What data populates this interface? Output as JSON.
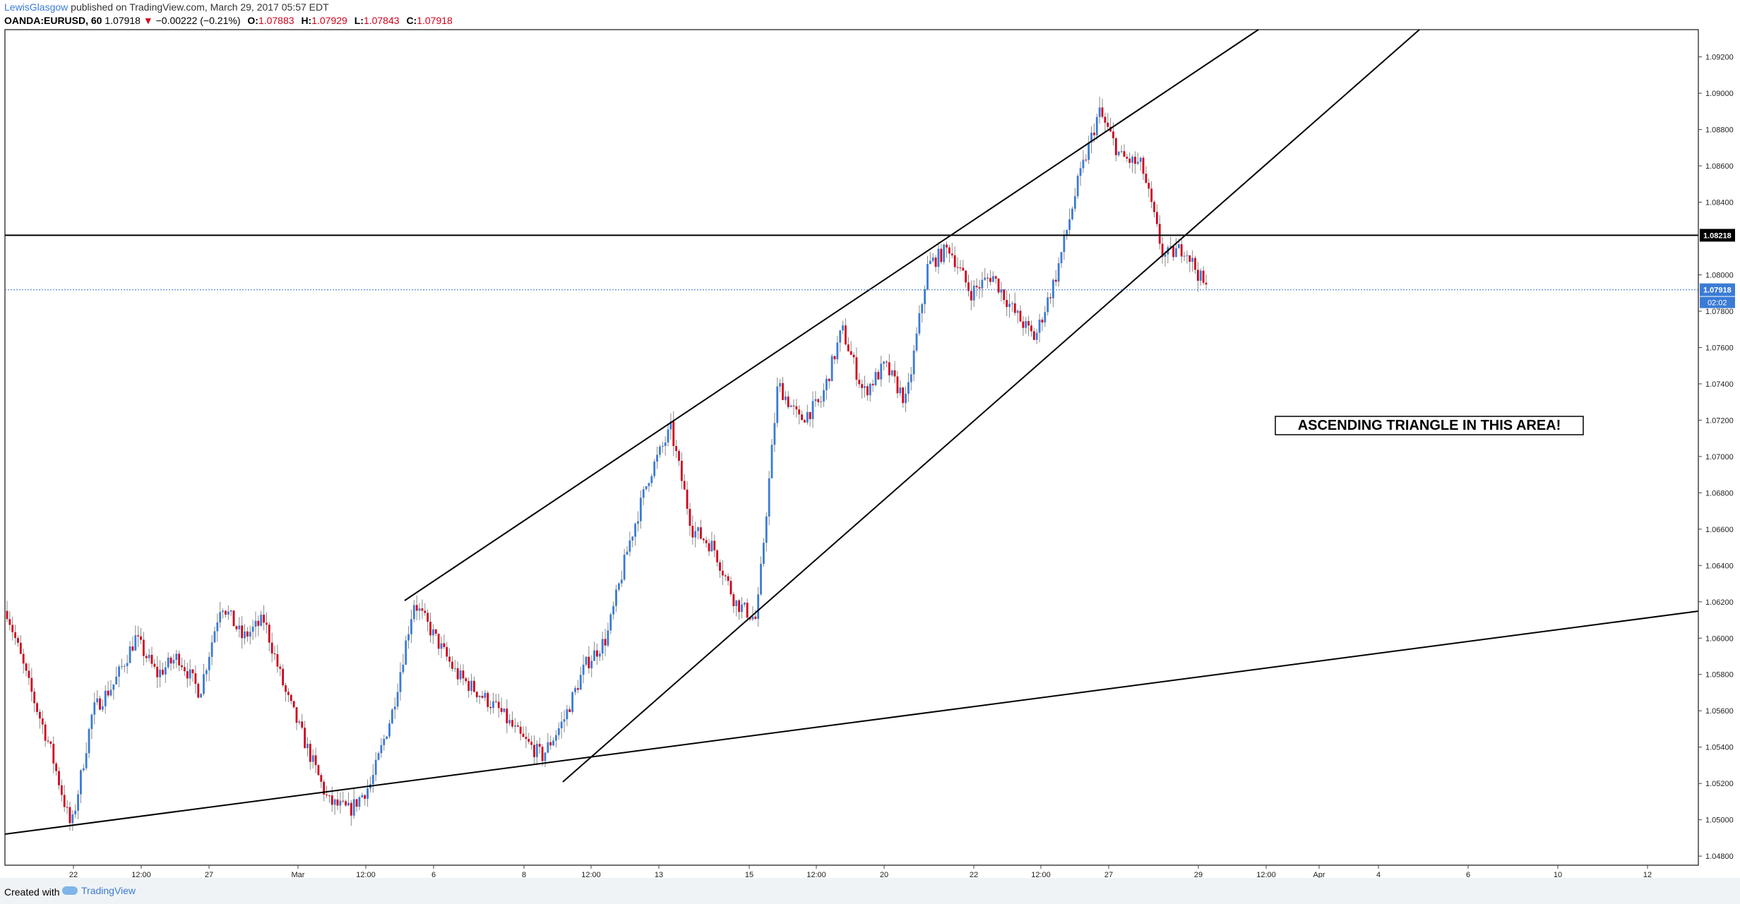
{
  "header": {
    "author": "LewisGlasgow",
    "published_text": " published on TradingView.com, March 29, 2017 05:57 EDT",
    "symbol": "OANDA:EURUSD, 60",
    "last": "1.07918",
    "change_arrow": "▼",
    "change": "−0.00222 (−0.21%)",
    "o_label": "O:",
    "o": "1.07883",
    "h_label": "H:",
    "h": "1.07929",
    "l_label": "L:",
    "l": "1.07843",
    "c_label": "C:",
    "c": "1.07918"
  },
  "footer": {
    "created_with": "Created with",
    "brand": "TradingView"
  },
  "chart_data": {
    "type": "candlestick",
    "title": "OANDA:EURUSD, 60",
    "x_ticks": [
      "22",
      "12:00",
      "27",
      "Mar",
      "12:00",
      "6",
      "8",
      "12:00",
      "13",
      "15",
      "12:00",
      "20",
      "22",
      "12:00",
      "27",
      "29",
      "12:00",
      "Apr",
      "4",
      "6",
      "10",
      "12"
    ],
    "y_ticks": [
      "1.09200",
      "1.09000",
      "1.08800",
      "1.08600",
      "1.08400",
      "1.08000",
      "1.07800",
      "1.07600",
      "1.07400",
      "1.07200",
      "1.07000",
      "1.06800",
      "1.06600",
      "1.06400",
      "1.06200",
      "1.06000",
      "1.05800",
      "1.05600",
      "1.05400",
      "1.05200",
      "1.05000",
      "1.04800"
    ],
    "ylim": [
      1.0475,
      1.0935
    ],
    "horizontal_line": {
      "price": 1.08218,
      "label": "1.08218"
    },
    "last_price": {
      "price": 1.07918,
      "label": "1.07918",
      "countdown": "02:02"
    },
    "annotation": "ASCENDING TRIANGLE IN THIS AREA!",
    "colors": {
      "up": "#3a7bd5",
      "down": "#d0021b",
      "line": "#000000",
      "last_price": "#3a7bd5"
    },
    "price_path": [
      [
        "Feb 20",
        1.0615
      ],
      [
        "Feb 21",
        1.0575
      ],
      [
        "Feb 21 12:00",
        1.054
      ],
      [
        "Feb 22",
        1.0495
      ],
      [
        "Feb 22 12:00",
        1.056
      ],
      [
        "Feb 23",
        1.0575
      ],
      [
        "Feb 23 12:00",
        1.06
      ],
      [
        "Feb 24",
        1.058
      ],
      [
        "Feb 24 12:00",
        1.059
      ],
      [
        "Feb 27",
        1.057
      ],
      [
        "Feb 27 12:00",
        1.062
      ],
      [
        "Feb 28",
        1.06
      ],
      [
        "Feb 28 12:00",
        1.061
      ],
      [
        "Mar 1",
        1.057
      ],
      [
        "Mar 1 12:00",
        1.054
      ],
      [
        "Mar 2",
        1.051
      ],
      [
        "Mar 2 12:00",
        1.0505
      ],
      [
        "Mar 3",
        1.052
      ],
      [
        "Mar 3 12:00",
        1.056
      ],
      [
        "Mar 6",
        1.062
      ],
      [
        "Mar 6 12:00",
        1.06
      ],
      [
        "Mar 7",
        1.058
      ],
      [
        "Mar 7 12:00",
        1.057
      ],
      [
        "Mar 8",
        1.056
      ],
      [
        "Mar 8 12:00",
        1.0545
      ],
      [
        "Mar 9",
        1.0535
      ],
      [
        "Mar 9 12:00",
        1.0555
      ],
      [
        "Mar 10",
        1.0585
      ],
      [
        "Mar 10 12:00",
        1.06
      ],
      [
        "Mar 13",
        1.065
      ],
      [
        "Mar 13 12:00",
        1.069
      ],
      [
        "Mar 14",
        1.0715
      ],
      [
        "Mar 14 12:00",
        1.066
      ],
      [
        "Mar 15",
        1.065
      ],
      [
        "Mar 15 12:00",
        1.062
      ],
      [
        "Mar 16",
        1.061
      ],
      [
        "Mar 16 12:00",
        1.074
      ],
      [
        "Mar 17",
        1.072
      ],
      [
        "Mar 17 12:00",
        1.073
      ],
      [
        "Mar 20",
        1.077
      ],
      [
        "Mar 20 12:00",
        1.0735
      ],
      [
        "Mar 21",
        1.075
      ],
      [
        "Mar 21 12:00",
        1.073
      ],
      [
        "Mar 22",
        1.0805
      ],
      [
        "Mar 22 12:00",
        1.0815
      ],
      [
        "Mar 23",
        1.079
      ],
      [
        "Mar 23 12:00",
        1.08
      ],
      [
        "Mar 24",
        1.078
      ],
      [
        "Mar 24 12:00",
        1.0765
      ],
      [
        "Mar 27",
        1.08
      ],
      [
        "Mar 27 12:00",
        1.085
      ],
      [
        "Mar 28",
        1.089
      ],
      [
        "Mar 28 12:00",
        1.0865
      ],
      [
        "Mar 29",
        1.086
      ],
      [
        "Mar 29 12:00",
        1.081
      ],
      [
        "Mar 30",
        1.0815
      ],
      [
        "Mar 30 12:00",
        1.0792
      ]
    ]
  }
}
